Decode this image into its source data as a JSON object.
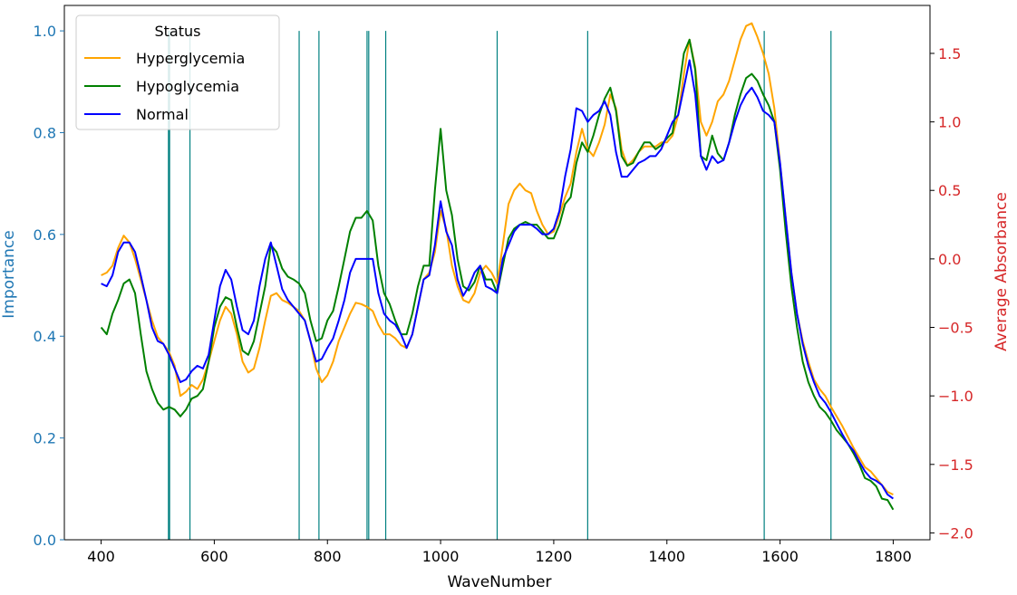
{
  "chart_data": {
    "type": "line",
    "xlabel": "WaveNumber",
    "ylabel_left": "Importance",
    "ylabel_right": "Average Absorbance",
    "xlim": [
      335,
      1865
    ],
    "ylim_left": [
      0,
      1.05
    ],
    "ylim_right": [
      -2.05,
      1.85
    ],
    "x_ticks": [
      "400",
      "600",
      "800",
      "1000",
      "1200",
      "1400",
      "1600",
      "1800"
    ],
    "y_ticks_left": [
      "0.0",
      "0.2",
      "0.4",
      "0.6",
      "0.8",
      "1.0"
    ],
    "y_ticks_right": [
      "−2.0",
      "−1.5",
      "−1.0",
      "−0.5",
      "0.0",
      "0.5",
      "1.0",
      "1.5"
    ],
    "grid": false,
    "colors": {
      "left_axis": "#1f77b4",
      "right_axis": "#d62728",
      "importance_bars": "#008080"
    },
    "importance_bars": {
      "color": "#008080",
      "x": [
        519,
        521,
        557,
        750,
        785,
        870,
        873,
        903,
        1100,
        1260,
        1572,
        1690
      ],
      "values": [
        1.0,
        1.0,
        1.0,
        1.0,
        1.0,
        1.0,
        1.0,
        1.0,
        1.0,
        1.0,
        1.0,
        1.0
      ]
    },
    "legend": {
      "title": "Status",
      "position": "top-left"
    },
    "series": [
      {
        "name": "Hyperglycemia",
        "color": "#ffa500",
        "x": [
          400,
          410,
          420,
          430,
          440,
          450,
          460,
          470,
          480,
          490,
          500,
          510,
          520,
          530,
          540,
          550,
          560,
          570,
          580,
          590,
          600,
          610,
          620,
          630,
          640,
          650,
          660,
          670,
          680,
          690,
          700,
          710,
          720,
          730,
          740,
          750,
          760,
          770,
          780,
          790,
          800,
          810,
          820,
          830,
          840,
          850,
          860,
          870,
          880,
          890,
          900,
          910,
          920,
          930,
          940,
          950,
          960,
          970,
          980,
          990,
          1000,
          1010,
          1020,
          1030,
          1040,
          1050,
          1060,
          1070,
          1080,
          1090,
          1100,
          1110,
          1120,
          1130,
          1140,
          1150,
          1160,
          1170,
          1180,
          1190,
          1200,
          1210,
          1220,
          1230,
          1240,
          1250,
          1260,
          1270,
          1280,
          1290,
          1300,
          1310,
          1320,
          1330,
          1340,
          1350,
          1360,
          1370,
          1380,
          1390,
          1400,
          1410,
          1420,
          1430,
          1440,
          1450,
          1460,
          1470,
          1480,
          1490,
          1500,
          1510,
          1520,
          1530,
          1540,
          1550,
          1560,
          1570,
          1580,
          1590,
          1600,
          1610,
          1620,
          1630,
          1640,
          1650,
          1660,
          1670,
          1680,
          1690,
          1700,
          1710,
          1720,
          1730,
          1740,
          1750,
          1760,
          1770,
          1780,
          1790,
          1800
        ],
        "values": [
          -0.12,
          -0.1,
          -0.05,
          0.08,
          0.17,
          0.12,
          0.0,
          -0.15,
          -0.3,
          -0.45,
          -0.57,
          -0.62,
          -0.68,
          -0.78,
          -1.0,
          -0.97,
          -0.92,
          -0.95,
          -0.88,
          -0.75,
          -0.6,
          -0.45,
          -0.35,
          -0.4,
          -0.55,
          -0.75,
          -0.83,
          -0.8,
          -0.65,
          -0.45,
          -0.27,
          -0.25,
          -0.3,
          -0.32,
          -0.35,
          -0.38,
          -0.45,
          -0.6,
          -0.8,
          -0.9,
          -0.85,
          -0.75,
          -0.6,
          -0.5,
          -0.4,
          -0.32,
          -0.33,
          -0.35,
          -0.38,
          -0.48,
          -0.55,
          -0.55,
          -0.58,
          -0.63,
          -0.65,
          -0.55,
          -0.35,
          -0.15,
          -0.1,
          0.05,
          0.35,
          0.22,
          -0.05,
          -0.2,
          -0.3,
          -0.32,
          -0.25,
          -0.1,
          -0.05,
          -0.1,
          -0.18,
          0.1,
          0.4,
          0.5,
          0.55,
          0.5,
          0.48,
          0.35,
          0.25,
          0.18,
          0.2,
          0.32,
          0.45,
          0.55,
          0.78,
          0.95,
          0.8,
          0.75,
          0.85,
          0.98,
          1.2,
          1.1,
          0.8,
          0.68,
          0.72,
          0.78,
          0.82,
          0.82,
          0.82,
          0.85,
          0.85,
          0.9,
          1.05,
          1.35,
          1.6,
          1.4,
          1.0,
          0.9,
          1.0,
          1.15,
          1.2,
          1.3,
          1.45,
          1.6,
          1.7,
          1.72,
          1.62,
          1.5,
          1.35,
          1.1,
          0.7,
          0.3,
          -0.1,
          -0.4,
          -0.6,
          -0.75,
          -0.88,
          -0.95,
          -1.0,
          -1.08,
          -1.15,
          -1.22,
          -1.3,
          -1.38,
          -1.45,
          -1.52,
          -1.55,
          -1.6,
          -1.65,
          -1.7,
          -1.72
        ]
      },
      {
        "name": "Hypoglycemia",
        "color": "#008000",
        "x": [
          400,
          410,
          420,
          430,
          440,
          450,
          460,
          470,
          480,
          490,
          500,
          510,
          520,
          530,
          540,
          550,
          560,
          570,
          580,
          590,
          600,
          610,
          620,
          630,
          640,
          650,
          660,
          670,
          680,
          690,
          700,
          710,
          720,
          730,
          740,
          750,
          760,
          770,
          780,
          790,
          800,
          810,
          820,
          830,
          840,
          850,
          860,
          870,
          880,
          890,
          900,
          910,
          920,
          930,
          940,
          950,
          960,
          970,
          980,
          990,
          1000,
          1010,
          1020,
          1030,
          1040,
          1050,
          1060,
          1070,
          1080,
          1090,
          1100,
          1110,
          1120,
          1130,
          1140,
          1150,
          1160,
          1170,
          1180,
          1190,
          1200,
          1210,
          1220,
          1230,
          1240,
          1250,
          1260,
          1270,
          1280,
          1290,
          1300,
          1310,
          1320,
          1330,
          1340,
          1350,
          1360,
          1370,
          1380,
          1390,
          1400,
          1410,
          1420,
          1430,
          1440,
          1450,
          1460,
          1470,
          1480,
          1490,
          1500,
          1510,
          1520,
          1530,
          1540,
          1550,
          1560,
          1570,
          1580,
          1590,
          1600,
          1610,
          1620,
          1630,
          1640,
          1650,
          1660,
          1670,
          1680,
          1690,
          1700,
          1710,
          1720,
          1730,
          1740,
          1750,
          1760,
          1770,
          1780,
          1790,
          1800
        ],
        "values": [
          -0.5,
          -0.55,
          -0.4,
          -0.3,
          -0.18,
          -0.15,
          -0.25,
          -0.55,
          -0.82,
          -0.95,
          -1.05,
          -1.1,
          -1.08,
          -1.1,
          -1.15,
          -1.1,
          -1.02,
          -1.0,
          -0.95,
          -0.75,
          -0.5,
          -0.35,
          -0.28,
          -0.3,
          -0.5,
          -0.67,
          -0.7,
          -0.6,
          -0.4,
          -0.2,
          0.1,
          0.05,
          -0.07,
          -0.13,
          -0.15,
          -0.18,
          -0.25,
          -0.45,
          -0.6,
          -0.58,
          -0.45,
          -0.38,
          -0.2,
          0.0,
          0.2,
          0.3,
          0.3,
          0.35,
          0.28,
          -0.05,
          -0.25,
          -0.33,
          -0.45,
          -0.55,
          -0.55,
          -0.4,
          -0.2,
          -0.05,
          -0.05,
          0.5,
          0.95,
          0.5,
          0.32,
          0.0,
          -0.2,
          -0.23,
          -0.17,
          -0.05,
          -0.15,
          -0.15,
          -0.25,
          -0.05,
          0.15,
          0.22,
          0.25,
          0.27,
          0.25,
          0.25,
          0.2,
          0.15,
          0.15,
          0.25,
          0.4,
          0.45,
          0.7,
          0.85,
          0.78,
          0.9,
          1.05,
          1.17,
          1.25,
          1.08,
          0.75,
          0.68,
          0.7,
          0.78,
          0.85,
          0.85,
          0.8,
          0.83,
          0.88,
          0.92,
          1.2,
          1.5,
          1.6,
          1.38,
          0.75,
          0.72,
          0.9,
          0.77,
          0.72,
          0.85,
          1.05,
          1.2,
          1.32,
          1.35,
          1.3,
          1.2,
          1.12,
          1.0,
          0.65,
          0.2,
          -0.2,
          -0.5,
          -0.75,
          -0.9,
          -1.0,
          -1.08,
          -1.12,
          -1.18,
          -1.25,
          -1.3,
          -1.35,
          -1.42,
          -1.5,
          -1.6,
          -1.62,
          -1.66,
          -1.75,
          -1.76,
          -1.83
        ]
      },
      {
        "name": "Normal",
        "color": "#0000ff",
        "x": [
          400,
          410,
          420,
          430,
          440,
          450,
          460,
          470,
          480,
          490,
          500,
          510,
          520,
          530,
          540,
          550,
          560,
          570,
          580,
          590,
          600,
          610,
          620,
          630,
          640,
          650,
          660,
          670,
          680,
          690,
          700,
          710,
          720,
          730,
          740,
          750,
          760,
          770,
          780,
          790,
          800,
          810,
          820,
          830,
          840,
          850,
          860,
          870,
          880,
          890,
          900,
          910,
          920,
          930,
          940,
          950,
          960,
          970,
          980,
          990,
          1000,
          1010,
          1020,
          1030,
          1040,
          1050,
          1060,
          1070,
          1080,
          1090,
          1100,
          1110,
          1120,
          1130,
          1140,
          1150,
          1160,
          1170,
          1180,
          1190,
          1200,
          1210,
          1220,
          1230,
          1240,
          1250,
          1260,
          1270,
          1280,
          1290,
          1300,
          1310,
          1320,
          1330,
          1340,
          1350,
          1360,
          1370,
          1380,
          1390,
          1400,
          1410,
          1420,
          1430,
          1440,
          1450,
          1460,
          1470,
          1480,
          1490,
          1500,
          1510,
          1520,
          1530,
          1540,
          1550,
          1560,
          1570,
          1580,
          1590,
          1600,
          1610,
          1620,
          1630,
          1640,
          1650,
          1660,
          1670,
          1680,
          1690,
          1700,
          1710,
          1720,
          1730,
          1740,
          1750,
          1760,
          1770,
          1780,
          1790,
          1800
        ],
        "values": [
          -0.18,
          -0.2,
          -0.12,
          0.05,
          0.12,
          0.12,
          0.05,
          -0.12,
          -0.3,
          -0.5,
          -0.6,
          -0.62,
          -0.7,
          -0.8,
          -0.9,
          -0.88,
          -0.82,
          -0.78,
          -0.8,
          -0.7,
          -0.45,
          -0.2,
          -0.08,
          -0.15,
          -0.35,
          -0.52,
          -0.55,
          -0.45,
          -0.2,
          0.0,
          0.12,
          -0.05,
          -0.22,
          -0.3,
          -0.35,
          -0.4,
          -0.45,
          -0.6,
          -0.75,
          -0.73,
          -0.65,
          -0.58,
          -0.45,
          -0.3,
          -0.1,
          0.0,
          0.0,
          0.0,
          0.0,
          -0.25,
          -0.4,
          -0.45,
          -0.48,
          -0.55,
          -0.65,
          -0.55,
          -0.35,
          -0.15,
          -0.12,
          0.1,
          0.42,
          0.2,
          0.1,
          -0.15,
          -0.27,
          -0.2,
          -0.1,
          -0.05,
          -0.2,
          -0.22,
          -0.25,
          0.0,
          0.1,
          0.2,
          0.25,
          0.25,
          0.25,
          0.22,
          0.18,
          0.18,
          0.22,
          0.35,
          0.6,
          0.8,
          1.1,
          1.08,
          1.0,
          1.05,
          1.08,
          1.15,
          1.05,
          0.78,
          0.6,
          0.6,
          0.65,
          0.7,
          0.72,
          0.75,
          0.75,
          0.8,
          0.9,
          1.0,
          1.05,
          1.25,
          1.45,
          1.2,
          0.75,
          0.65,
          0.75,
          0.7,
          0.72,
          0.85,
          1.0,
          1.12,
          1.2,
          1.25,
          1.18,
          1.08,
          1.05,
          1.0,
          0.7,
          0.3,
          -0.1,
          -0.4,
          -0.62,
          -0.78,
          -0.9,
          -1.0,
          -1.05,
          -1.12,
          -1.2,
          -1.28,
          -1.35,
          -1.4,
          -1.48,
          -1.55,
          -1.6,
          -1.62,
          -1.65,
          -1.72,
          -1.75
        ]
      }
    ]
  }
}
